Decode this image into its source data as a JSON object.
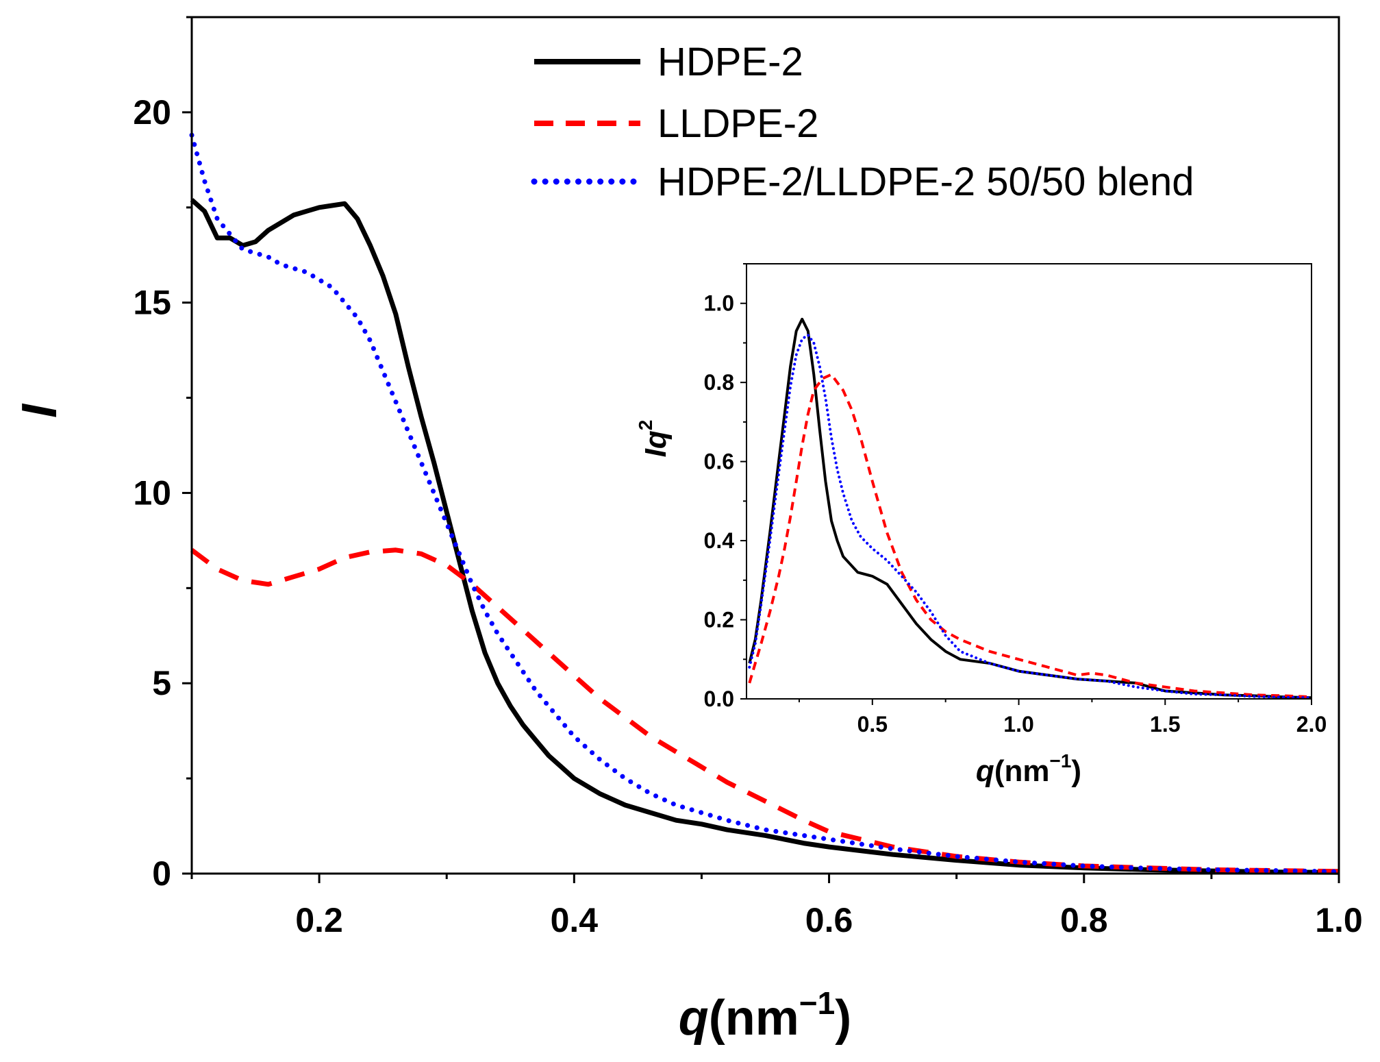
{
  "chart_data": [
    {
      "id": "main",
      "type": "line",
      "xlabel_var": "q",
      "xlabel_unit": "(nm",
      "xlabel_exp": "−1",
      "xlabel_close": ")",
      "ylabel": "I",
      "xlim": [
        0.1,
        1.0
      ],
      "ylim": [
        0,
        22.5
      ],
      "xticks": [
        0.2,
        0.4,
        0.6,
        0.8,
        1.0
      ],
      "xtick_labels": [
        "0.2",
        "0.4",
        "0.6",
        "0.8",
        "1.0"
      ],
      "yticks": [
        0,
        5,
        10,
        15,
        20
      ],
      "ytick_labels": [
        "0",
        "5",
        "10",
        "15",
        "20"
      ],
      "legend_position": "top-right",
      "series": [
        {
          "name": "HDPE-2",
          "color": "#000000",
          "style": "solid",
          "x": [
            0.1,
            0.11,
            0.12,
            0.13,
            0.14,
            0.15,
            0.16,
            0.17,
            0.18,
            0.19,
            0.2,
            0.21,
            0.22,
            0.23,
            0.24,
            0.25,
            0.26,
            0.27,
            0.28,
            0.29,
            0.3,
            0.31,
            0.32,
            0.33,
            0.34,
            0.35,
            0.36,
            0.37,
            0.38,
            0.39,
            0.4,
            0.42,
            0.44,
            0.46,
            0.48,
            0.5,
            0.52,
            0.55,
            0.58,
            0.6,
            0.65,
            0.7,
            0.75,
            0.8,
            0.85,
            0.9,
            0.95,
            1.0
          ],
          "y": [
            17.7,
            17.4,
            16.7,
            16.7,
            16.5,
            16.6,
            16.9,
            17.1,
            17.3,
            17.4,
            17.5,
            17.55,
            17.6,
            17.2,
            16.5,
            15.7,
            14.7,
            13.3,
            12.0,
            10.8,
            9.5,
            8.2,
            6.9,
            5.8,
            5.0,
            4.4,
            3.9,
            3.5,
            3.1,
            2.8,
            2.5,
            2.1,
            1.8,
            1.6,
            1.4,
            1.3,
            1.15,
            1.0,
            0.8,
            0.7,
            0.5,
            0.35,
            0.22,
            0.15,
            0.1,
            0.07,
            0.04,
            0.03
          ]
        },
        {
          "name": "LLDPE-2",
          "color": "#ff0000",
          "style": "dashed",
          "x": [
            0.1,
            0.12,
            0.14,
            0.16,
            0.18,
            0.2,
            0.22,
            0.24,
            0.26,
            0.28,
            0.3,
            0.32,
            0.34,
            0.36,
            0.38,
            0.4,
            0.42,
            0.44,
            0.46,
            0.48,
            0.5,
            0.52,
            0.55,
            0.58,
            0.6,
            0.65,
            0.7,
            0.75,
            0.8,
            0.85,
            0.9,
            0.95,
            1.0
          ],
          "y": [
            8.5,
            8.0,
            7.7,
            7.6,
            7.8,
            8.0,
            8.3,
            8.45,
            8.5,
            8.4,
            8.1,
            7.6,
            7.0,
            6.4,
            5.8,
            5.2,
            4.6,
            4.1,
            3.6,
            3.2,
            2.8,
            2.4,
            1.9,
            1.4,
            1.1,
            0.7,
            0.45,
            0.3,
            0.2,
            0.15,
            0.1,
            0.08,
            0.06
          ]
        },
        {
          "name": "HDPE-2/LLDPE-2 50/50 blend",
          "color": "#0000ff",
          "style": "dotted",
          "x": [
            0.1,
            0.11,
            0.12,
            0.13,
            0.14,
            0.15,
            0.16,
            0.17,
            0.18,
            0.19,
            0.2,
            0.21,
            0.22,
            0.23,
            0.24,
            0.25,
            0.26,
            0.27,
            0.28,
            0.29,
            0.3,
            0.31,
            0.32,
            0.33,
            0.34,
            0.35,
            0.36,
            0.37,
            0.38,
            0.39,
            0.4,
            0.42,
            0.44,
            0.46,
            0.48,
            0.5,
            0.52,
            0.55,
            0.58,
            0.6,
            0.65,
            0.7,
            0.75,
            0.8,
            0.85,
            0.9,
            0.95,
            1.0
          ],
          "y": [
            19.4,
            18.2,
            17.2,
            16.8,
            16.4,
            16.3,
            16.2,
            16.0,
            15.9,
            15.8,
            15.6,
            15.4,
            15.0,
            14.6,
            14.0,
            13.2,
            12.4,
            11.6,
            10.8,
            10.0,
            9.2,
            8.4,
            7.6,
            6.9,
            6.3,
            5.8,
            5.3,
            4.8,
            4.4,
            4.0,
            3.6,
            3.0,
            2.5,
            2.1,
            1.8,
            1.6,
            1.4,
            1.15,
            1.0,
            0.9,
            0.65,
            0.45,
            0.3,
            0.2,
            0.14,
            0.1,
            0.08,
            0.05
          ]
        }
      ]
    },
    {
      "id": "inset",
      "type": "line",
      "xlabel_var": "q",
      "xlabel_unit": "(nm",
      "xlabel_exp": "−1",
      "xlabel_close": ")",
      "ylabel": "Iq",
      "ylabel_exp": "2",
      "xlim": [
        0.07,
        2.0
      ],
      "ylim": [
        0,
        1.1
      ],
      "xticks": [
        0.5,
        1.0,
        1.5,
        2.0
      ],
      "xtick_labels": [
        "0.5",
        "1.0",
        "1.5",
        "2.0"
      ],
      "yticks": [
        0.0,
        0.2,
        0.4,
        0.6,
        0.8,
        1.0
      ],
      "ytick_labels": [
        "0.0",
        "0.2",
        "0.4",
        "0.6",
        "0.8",
        "1.0"
      ],
      "series": [
        {
          "name": "HDPE-2",
          "color": "#000000",
          "style": "solid",
          "x": [
            0.08,
            0.1,
            0.12,
            0.15,
            0.18,
            0.2,
            0.22,
            0.24,
            0.26,
            0.28,
            0.3,
            0.32,
            0.34,
            0.36,
            0.38,
            0.4,
            0.45,
            0.5,
            0.55,
            0.6,
            0.65,
            0.7,
            0.75,
            0.8,
            0.9,
            1.0,
            1.1,
            1.2,
            1.3,
            1.4,
            1.5,
            1.6,
            1.7,
            1.8,
            1.9,
            2.0
          ],
          "y": [
            0.09,
            0.15,
            0.25,
            0.42,
            0.6,
            0.72,
            0.84,
            0.93,
            0.96,
            0.93,
            0.82,
            0.68,
            0.55,
            0.45,
            0.4,
            0.36,
            0.32,
            0.31,
            0.29,
            0.24,
            0.19,
            0.15,
            0.12,
            0.1,
            0.09,
            0.07,
            0.06,
            0.05,
            0.045,
            0.04,
            0.02,
            0.015,
            0.01,
            0.008,
            0.005,
            0.003
          ]
        },
        {
          "name": "LLDPE-2",
          "color": "#ff0000",
          "style": "dashed",
          "x": [
            0.08,
            0.1,
            0.12,
            0.15,
            0.18,
            0.2,
            0.22,
            0.24,
            0.26,
            0.28,
            0.3,
            0.33,
            0.36,
            0.38,
            0.4,
            0.43,
            0.46,
            0.5,
            0.55,
            0.6,
            0.65,
            0.7,
            0.75,
            0.8,
            0.9,
            1.0,
            1.1,
            1.2,
            1.25,
            1.3,
            1.4,
            1.5,
            1.6,
            1.7,
            1.8,
            1.9,
            2.0
          ],
          "y": [
            0.04,
            0.09,
            0.14,
            0.22,
            0.31,
            0.38,
            0.46,
            0.55,
            0.64,
            0.72,
            0.78,
            0.81,
            0.82,
            0.8,
            0.78,
            0.73,
            0.66,
            0.55,
            0.42,
            0.32,
            0.25,
            0.2,
            0.17,
            0.15,
            0.12,
            0.1,
            0.08,
            0.06,
            0.065,
            0.06,
            0.04,
            0.03,
            0.02,
            0.015,
            0.01,
            0.008,
            0.005
          ]
        },
        {
          "name": "HDPE-2/LLDPE-2 50/50 blend",
          "color": "#0000ff",
          "style": "dotted",
          "x": [
            0.08,
            0.1,
            0.12,
            0.15,
            0.18,
            0.2,
            0.22,
            0.24,
            0.26,
            0.28,
            0.3,
            0.32,
            0.34,
            0.36,
            0.38,
            0.4,
            0.43,
            0.46,
            0.5,
            0.55,
            0.6,
            0.65,
            0.7,
            0.75,
            0.8,
            0.9,
            1.0,
            1.1,
            1.2,
            1.3,
            1.4,
            1.5,
            1.6,
            1.7,
            1.8,
            1.9,
            2.0
          ],
          "y": [
            0.08,
            0.14,
            0.24,
            0.4,
            0.57,
            0.68,
            0.79,
            0.87,
            0.91,
            0.92,
            0.9,
            0.84,
            0.76,
            0.66,
            0.58,
            0.52,
            0.45,
            0.41,
            0.38,
            0.35,
            0.31,
            0.27,
            0.22,
            0.16,
            0.12,
            0.09,
            0.07,
            0.06,
            0.05,
            0.045,
            0.03,
            0.02,
            0.012,
            0.01,
            0.006,
            0.004,
            0.003
          ]
        }
      ]
    }
  ]
}
